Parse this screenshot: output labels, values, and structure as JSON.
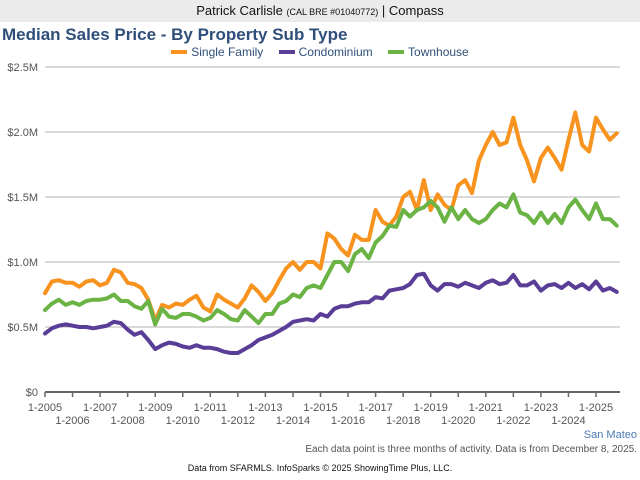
{
  "header": {
    "agent_name": "Patrick Carlisle",
    "license": "(CAL BRE #01040772)",
    "separator": "|",
    "brokerage": "Compass"
  },
  "region_label": "San Mateo",
  "note": "Each data point is three months of activity. Data is from December 8, 2025.",
  "source": "Data from SFARMLS. InfoSparks © 2025 ShowingTime Plus, LLC.",
  "chart_data": {
    "type": "line",
    "title": "Median Sales Price - By Property Sub Type",
    "xlabel": "",
    "ylabel": "",
    "ylim": [
      0,
      2.5
    ],
    "yunit": "$M",
    "yticks": [
      {
        "value": 0,
        "label": "$0"
      },
      {
        "value": 0.5,
        "label": "$0.5M"
      },
      {
        "value": 1.0,
        "label": "$1.0M"
      },
      {
        "value": 1.5,
        "label": "$1.5M"
      },
      {
        "value": 2.0,
        "label": "$2.0M"
      },
      {
        "value": 2.5,
        "label": "$2.5M"
      }
    ],
    "xlim": [
      2005.0,
      2025.85
    ],
    "xticks": [
      {
        "value": 2005,
        "label": "1-2005"
      },
      {
        "value": 2006,
        "label": "1-2006"
      },
      {
        "value": 2007,
        "label": "1-2007"
      },
      {
        "value": 2008,
        "label": "1-2008"
      },
      {
        "value": 2009,
        "label": "1-2009"
      },
      {
        "value": 2010,
        "label": "1-2010"
      },
      {
        "value": 2011,
        "label": "1-2011"
      },
      {
        "value": 2012,
        "label": "1-2012"
      },
      {
        "value": 2013,
        "label": "1-2013"
      },
      {
        "value": 2014,
        "label": "1-2014"
      },
      {
        "value": 2015,
        "label": "1-2015"
      },
      {
        "value": 2016,
        "label": "1-2016"
      },
      {
        "value": 2017,
        "label": "1-2017"
      },
      {
        "value": 2018,
        "label": "1-2018"
      },
      {
        "value": 2019,
        "label": "1-2019"
      },
      {
        "value": 2020,
        "label": "1-2020"
      },
      {
        "value": 2021,
        "label": "1-2021"
      },
      {
        "value": 2022,
        "label": "1-2022"
      },
      {
        "value": 2023,
        "label": "1-2023"
      },
      {
        "value": 2024,
        "label": "1-2024"
      },
      {
        "value": 2025,
        "label": "1-2025"
      }
    ],
    "grid": true,
    "legend_position": "top-center",
    "x": [
      2005.0,
      2005.25,
      2005.5,
      2005.75,
      2006.0,
      2006.25,
      2006.5,
      2006.75,
      2007.0,
      2007.25,
      2007.5,
      2007.75,
      2008.0,
      2008.25,
      2008.5,
      2008.75,
      2009.0,
      2009.25,
      2009.5,
      2009.75,
      2010.0,
      2010.25,
      2010.5,
      2010.75,
      2011.0,
      2011.25,
      2011.5,
      2011.75,
      2012.0,
      2012.25,
      2012.5,
      2012.75,
      2013.0,
      2013.25,
      2013.5,
      2013.75,
      2014.0,
      2014.25,
      2014.5,
      2014.75,
      2015.0,
      2015.25,
      2015.5,
      2015.75,
      2016.0,
      2016.25,
      2016.5,
      2016.75,
      2017.0,
      2017.25,
      2017.5,
      2017.75,
      2018.0,
      2018.25,
      2018.5,
      2018.75,
      2019.0,
      2019.25,
      2019.5,
      2019.75,
      2020.0,
      2020.25,
      2020.5,
      2020.75,
      2021.0,
      2021.25,
      2021.5,
      2021.75,
      2022.0,
      2022.25,
      2022.5,
      2022.75,
      2023.0,
      2023.25,
      2023.5,
      2023.75,
      2024.0,
      2024.25,
      2024.5,
      2024.75,
      2025.0,
      2025.25,
      2025.5,
      2025.75
    ],
    "series": [
      {
        "name": "Single Family",
        "color": "#f7931e",
        "values": [
          0.76,
          0.85,
          0.86,
          0.84,
          0.84,
          0.81,
          0.85,
          0.86,
          0.82,
          0.84,
          0.94,
          0.92,
          0.84,
          0.83,
          0.8,
          0.71,
          0.55,
          0.67,
          0.65,
          0.68,
          0.67,
          0.71,
          0.74,
          0.65,
          0.62,
          0.75,
          0.71,
          0.68,
          0.65,
          0.72,
          0.82,
          0.77,
          0.7,
          0.76,
          0.86,
          0.95,
          1.0,
          0.94,
          1.0,
          1.0,
          0.95,
          1.22,
          1.18,
          1.1,
          1.05,
          1.21,
          1.17,
          1.17,
          1.4,
          1.31,
          1.28,
          1.35,
          1.5,
          1.54,
          1.4,
          1.63,
          1.4,
          1.52,
          1.44,
          1.4,
          1.59,
          1.63,
          1.53,
          1.78,
          1.9,
          2.0,
          1.9,
          1.92,
          2.11,
          1.9,
          1.78,
          1.62,
          1.8,
          1.88,
          1.8,
          1.71,
          1.94,
          2.15,
          1.9,
          1.85,
          2.11,
          2.02,
          1.94,
          1.99
        ]
      },
      {
        "name": "Condominium",
        "color": "#5a3d96",
        "values": [
          0.45,
          0.49,
          0.51,
          0.52,
          0.51,
          0.5,
          0.5,
          0.49,
          0.5,
          0.51,
          0.54,
          0.53,
          0.48,
          0.44,
          0.46,
          0.4,
          0.33,
          0.36,
          0.38,
          0.37,
          0.35,
          0.34,
          0.36,
          0.34,
          0.34,
          0.33,
          0.31,
          0.3,
          0.3,
          0.33,
          0.36,
          0.4,
          0.42,
          0.44,
          0.47,
          0.5,
          0.54,
          0.55,
          0.56,
          0.55,
          0.6,
          0.58,
          0.64,
          0.66,
          0.66,
          0.68,
          0.69,
          0.69,
          0.73,
          0.72,
          0.78,
          0.79,
          0.8,
          0.83,
          0.9,
          0.91,
          0.82,
          0.78,
          0.83,
          0.83,
          0.81,
          0.84,
          0.82,
          0.8,
          0.84,
          0.86,
          0.83,
          0.84,
          0.9,
          0.82,
          0.82,
          0.85,
          0.78,
          0.82,
          0.83,
          0.8,
          0.84,
          0.8,
          0.83,
          0.79,
          0.85,
          0.78,
          0.8,
          0.77
        ]
      },
      {
        "name": "Townhouse",
        "color": "#6ab344",
        "values": [
          0.63,
          0.68,
          0.71,
          0.67,
          0.69,
          0.67,
          0.7,
          0.71,
          0.71,
          0.72,
          0.75,
          0.7,
          0.7,
          0.66,
          0.64,
          0.7,
          0.52,
          0.64,
          0.58,
          0.57,
          0.6,
          0.6,
          0.58,
          0.55,
          0.57,
          0.63,
          0.6,
          0.56,
          0.55,
          0.63,
          0.58,
          0.53,
          0.6,
          0.6,
          0.68,
          0.7,
          0.75,
          0.73,
          0.8,
          0.82,
          0.8,
          0.9,
          1.0,
          1.0,
          0.93,
          1.06,
          1.1,
          1.03,
          1.15,
          1.2,
          1.28,
          1.27,
          1.4,
          1.35,
          1.4,
          1.42,
          1.47,
          1.42,
          1.31,
          1.42,
          1.33,
          1.4,
          1.33,
          1.3,
          1.33,
          1.4,
          1.45,
          1.42,
          1.52,
          1.38,
          1.36,
          1.3,
          1.38,
          1.3,
          1.37,
          1.3,
          1.42,
          1.48,
          1.4,
          1.33,
          1.45,
          1.33,
          1.33,
          1.28
        ]
      }
    ]
  }
}
